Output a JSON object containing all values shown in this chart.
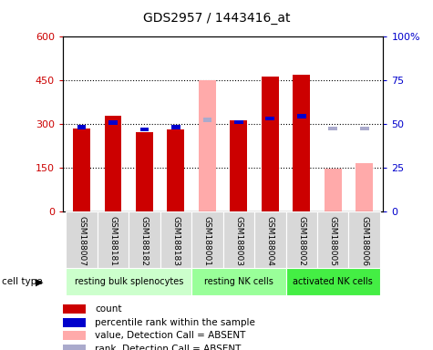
{
  "title": "GDS2957 / 1443416_at",
  "samples": [
    "GSM188007",
    "GSM188181",
    "GSM188182",
    "GSM188183",
    "GSM188001",
    "GSM188003",
    "GSM188004",
    "GSM188002",
    "GSM188005",
    "GSM188006"
  ],
  "groups": [
    {
      "name": "resting bulk splenocytes",
      "color": "#ccffcc",
      "indices": [
        0,
        1,
        2,
        3
      ]
    },
    {
      "name": "resting NK cells",
      "color": "#99ff99",
      "indices": [
        4,
        5,
        6
      ]
    },
    {
      "name": "activated NK cells",
      "color": "#44ee44",
      "indices": [
        7,
        8,
        9
      ]
    }
  ],
  "count_values": [
    285,
    330,
    272,
    283,
    null,
    315,
    465,
    470,
    null,
    null
  ],
  "count_absent": [
    null,
    null,
    null,
    null,
    450,
    null,
    null,
    null,
    148,
    168
  ],
  "percentile_values": [
    290,
    305,
    282,
    290,
    null,
    308,
    320,
    328,
    null,
    null
  ],
  "percentile_absent": [
    null,
    null,
    null,
    null,
    315,
    null,
    null,
    null,
    285,
    285
  ],
  "left_ylim": [
    0,
    600
  ],
  "right_ylim": [
    0,
    100
  ],
  "left_yticks": [
    0,
    150,
    300,
    450,
    600
  ],
  "right_yticks": [
    0,
    25,
    50,
    75,
    100
  ],
  "right_yticklabels": [
    "0",
    "25",
    "50",
    "75",
    "100%"
  ],
  "count_color": "#cc0000",
  "count_absent_color": "#ffaaaa",
  "percentile_color": "#0000cc",
  "percentile_absent_color": "#aaaacc",
  "legend": [
    {
      "label": "count",
      "color": "#cc0000"
    },
    {
      "label": "percentile rank within the sample",
      "color": "#0000cc"
    },
    {
      "label": "value, Detection Call = ABSENT",
      "color": "#ffaaaa"
    },
    {
      "label": "rank, Detection Call = ABSENT",
      "color": "#aaaacc"
    }
  ]
}
